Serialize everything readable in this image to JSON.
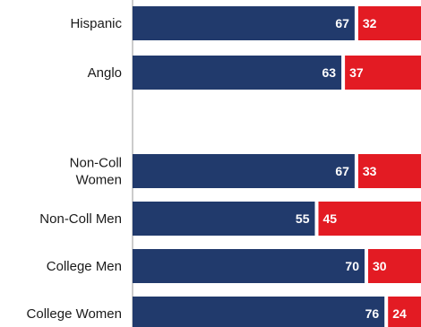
{
  "chart_data": {
    "type": "bar",
    "orientation": "horizontal",
    "stacked": true,
    "categories": [
      [
        "Hispanic"
      ],
      [
        "Anglo"
      ],
      [],
      [
        "Non-Coll",
        "Women"
      ],
      [
        "Non-Coll Men"
      ],
      [
        "College Men"
      ],
      [
        "College Women"
      ]
    ],
    "series": [
      {
        "values": [
          67,
          63,
          null,
          67,
          55,
          70,
          76
        ]
      },
      {
        "values": [
          32,
          37,
          null,
          33,
          45,
          30,
          24
        ]
      }
    ],
    "xlim": [
      0,
      100
    ],
    "grid": false,
    "legend": "none"
  },
  "colors": {
    "series_1": "#213a6c",
    "series_2": "#e31b23",
    "separator": "#ffffff",
    "axis_line": "#9a9a9a",
    "label_text": "#1a1a1a",
    "value_text": "#ffffff"
  }
}
